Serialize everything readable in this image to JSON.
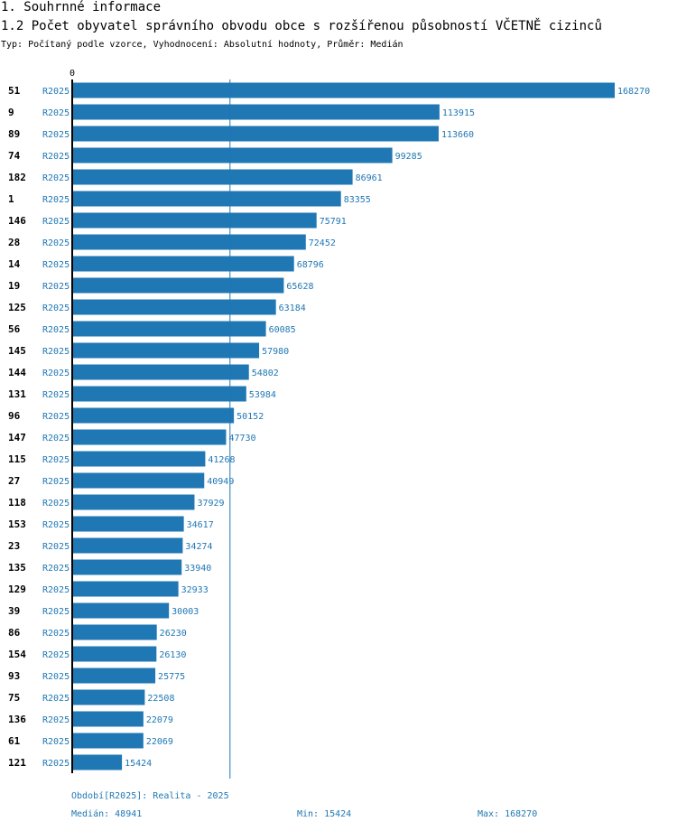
{
  "header": {
    "section_title": "1. Souhrnné informace",
    "chart_title": "1.2 Počet obyvatel správního obvodu obce s rozšířenou působností VČETNĚ cizinců",
    "subtitle": "Typ: Počítaný podle vzorce, Vyhodnocení: Absolutní hodnoty, Průměr: Medián"
  },
  "footer": {
    "period": "Období[R2025]: Realita - 2025",
    "median": "Medián: 48941",
    "min": "Min: 15424",
    "max": "Max: 168270"
  },
  "colors": {
    "bar": "#1f77b4",
    "value_text": "#1f77b4",
    "median_line": "#1f77b4"
  },
  "chart_data": {
    "type": "bar",
    "orientation": "horizontal",
    "title": "1.2 Počet obyvatel správního obvodu obce s rozšířenou působností VČETNĚ cizinců",
    "axis_zero_label": "0",
    "series_label": "R2025",
    "median": 48941,
    "min": 15424,
    "max": 168270,
    "xlim": [
      0,
      168270
    ],
    "categories": [
      "51",
      "9",
      "89",
      "74",
      "182",
      "1",
      "146",
      "28",
      "14",
      "19",
      "125",
      "56",
      "145",
      "144",
      "131",
      "96",
      "147",
      "115",
      "27",
      "118",
      "153",
      "23",
      "135",
      "129",
      "39",
      "86",
      "154",
      "93",
      "75",
      "136",
      "61",
      "121"
    ],
    "values": [
      168270,
      113915,
      113660,
      99285,
      86961,
      83355,
      75791,
      72452,
      68796,
      65628,
      63184,
      60085,
      57980,
      54802,
      53984,
      50152,
      47730,
      41268,
      40949,
      37929,
      34617,
      34274,
      33940,
      32933,
      30003,
      26230,
      26130,
      25775,
      22508,
      22079,
      22069,
      15424
    ]
  }
}
